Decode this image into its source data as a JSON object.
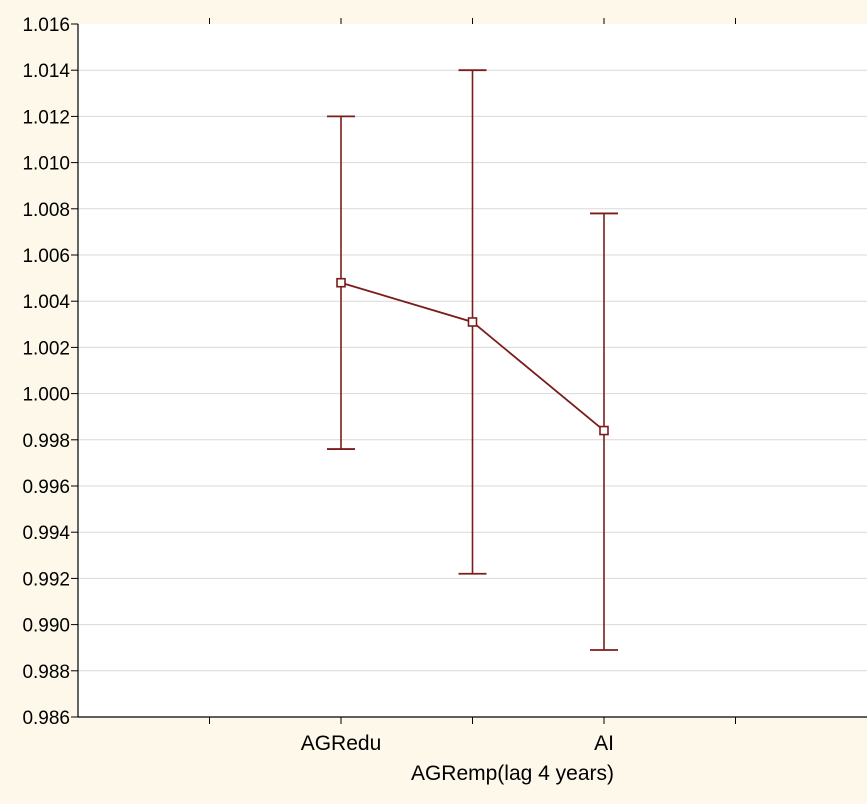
{
  "chart_data": {
    "type": "line",
    "title": "",
    "xlabel": "AGRemp(lag 4 years)",
    "ylabel": "",
    "ylim": [
      0.986,
      1.016
    ],
    "ytick_step": 0.002,
    "ytick_decimals": 3,
    "grid": "horizontal",
    "x_positions": 6,
    "x_tick_labels": [
      {
        "index": 2,
        "label": "AGRedu"
      },
      {
        "index": 4,
        "label": "AI"
      }
    ],
    "series": [
      {
        "color": "#7b1c1c",
        "marker": "square",
        "points": [
          {
            "index": 2,
            "mean": 1.0048,
            "lower": 0.9976,
            "upper": 1.012
          },
          {
            "index": 3,
            "mean": 1.0031,
            "lower": 0.9922,
            "upper": 1.014
          },
          {
            "index": 4,
            "mean": 0.9984,
            "lower": 0.9889,
            "upper": 1.0078
          }
        ]
      }
    ],
    "colors": {
      "plot_background": "#ffffff",
      "page_background": "#fdf8ea",
      "gridline": "#d9d9d9",
      "axis": "#000000"
    }
  }
}
